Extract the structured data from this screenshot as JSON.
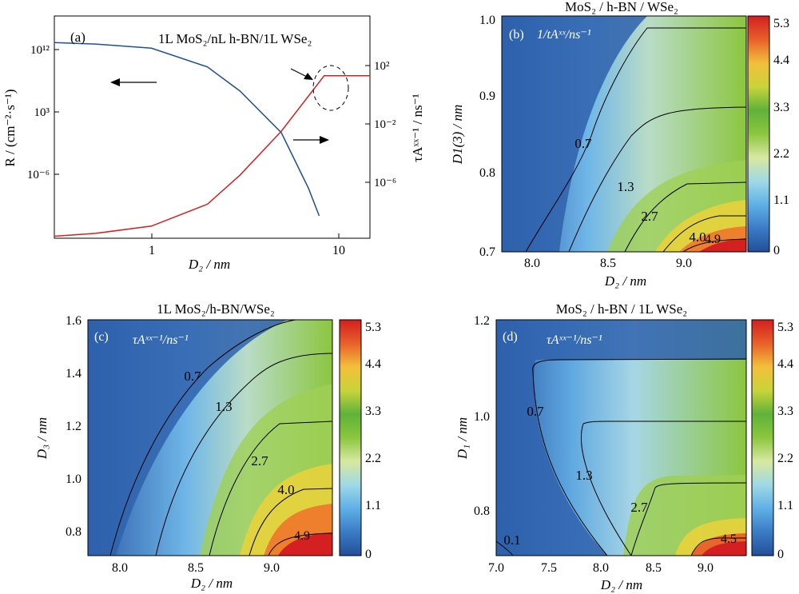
{
  "colorbar": {
    "colors": [
      "#234f99",
      "#3b7bc6",
      "#5fb0e6",
      "#9fd9e6",
      "#d8e8a0",
      "#8cc63f",
      "#5fb23a",
      "#f2d43a",
      "#f29a2e",
      "#e8432a",
      "#d21f1f"
    ],
    "ticks": [
      "5.3",
      "4.4",
      "3.3",
      "2.2",
      "1.1",
      "0"
    ]
  },
  "panel_a": {
    "label": "(a)",
    "title": "1L MoS₂/nL h-BN/1L WSe₂",
    "left_ticks": [
      "10¹²",
      "10³",
      "10⁻⁶"
    ],
    "right_ticks": [
      "10²",
      "10⁻²",
      "10⁻⁶"
    ],
    "x_ticks": [
      "1",
      "10"
    ],
    "ylabel_left": "R / (cm⁻²·s⁻¹)",
    "ylabel_right": "τAˣˣ⁻¹ / ns⁻¹",
    "xlabel": "D₂ / nm"
  },
  "panel_b": {
    "title": "MoS₂ / h-BN / WSe₂",
    "label": "(b)",
    "quantity": "1/tAˣˣ/ns⁻¹",
    "x_ticks": [
      "8.0",
      "8.5",
      "9.0"
    ],
    "y_ticks": [
      "1.0",
      "0.9",
      "0.8",
      "0.7"
    ],
    "xlabel": "D₂ / nm",
    "ylabel": "D1(3) / nm",
    "contour_labels": [
      "0.7",
      "1.3",
      "2.7",
      "4.0",
      "4.9"
    ]
  },
  "panel_c": {
    "title": "1L MoS₂/h-BN/WSe₂",
    "label": "(c)",
    "quantity": "τAˣˣ⁻¹/ns⁻¹",
    "x_ticks": [
      "8.0",
      "8.5",
      "9.0"
    ],
    "y_ticks": [
      "1.6",
      "1.4",
      "1.2",
      "1.0",
      "0.8"
    ],
    "xlabel": "D₂ / nm",
    "ylabel": "D₃ / nm",
    "contour_labels": [
      "0.7",
      "1.3",
      "2.7",
      "4.0",
      "4.9"
    ]
  },
  "panel_d": {
    "title": "MoS₂ / h-BN / 1L WSe₂",
    "label": "(d)",
    "quantity": "τAˣˣ⁻¹/ns⁻¹",
    "x_ticks": [
      "7.0",
      "7.5",
      "8.0",
      "8.5",
      "9.0"
    ],
    "y_ticks": [
      "1.2",
      "1.0",
      "0.8"
    ],
    "xlabel": "D₂ / nm",
    "ylabel": "D₁ / nm",
    "contour_labels": [
      "0.7",
      "1.3",
      "2.7",
      "4.5",
      "0.1"
    ]
  },
  "chart_data": [
    {
      "type": "line",
      "x_scale": "log",
      "xlim": [
        0.3,
        15
      ],
      "series": [
        {
          "axis": "left",
          "color": "#1f4e9c",
          "x": [
            0.3,
            0.5,
            1,
            2,
            3,
            5,
            7,
            8
          ],
          "y_log10": [
            13,
            12.8,
            12.2,
            9.5,
            6,
            0,
            -8,
            -12
          ]
        },
        {
          "axis": "right",
          "color": "#d62020",
          "x": [
            0.3,
            0.5,
            1,
            2,
            3,
            5,
            8.5,
            15
          ],
          "y_log10": [
            -9.7,
            -9.5,
            -9,
            -7.5,
            -5.5,
            -2.5,
            1.3,
            1.3
          ]
        }
      ]
    },
    {
      "type": "heatmap",
      "x_range": [
        7.8,
        9.4
      ],
      "y_range": [
        0.7,
        1.0
      ],
      "z_range": [
        0,
        5.3
      ]
    },
    {
      "type": "heatmap",
      "x_range": [
        7.8,
        9.4
      ],
      "y_range": [
        0.7,
        1.6
      ],
      "z_range": [
        0,
        5.3
      ]
    },
    {
      "type": "heatmap",
      "x_range": [
        7.0,
        9.4
      ],
      "y_range": [
        0.7,
        1.2
      ],
      "z_range": [
        0,
        5.3
      ]
    }
  ]
}
